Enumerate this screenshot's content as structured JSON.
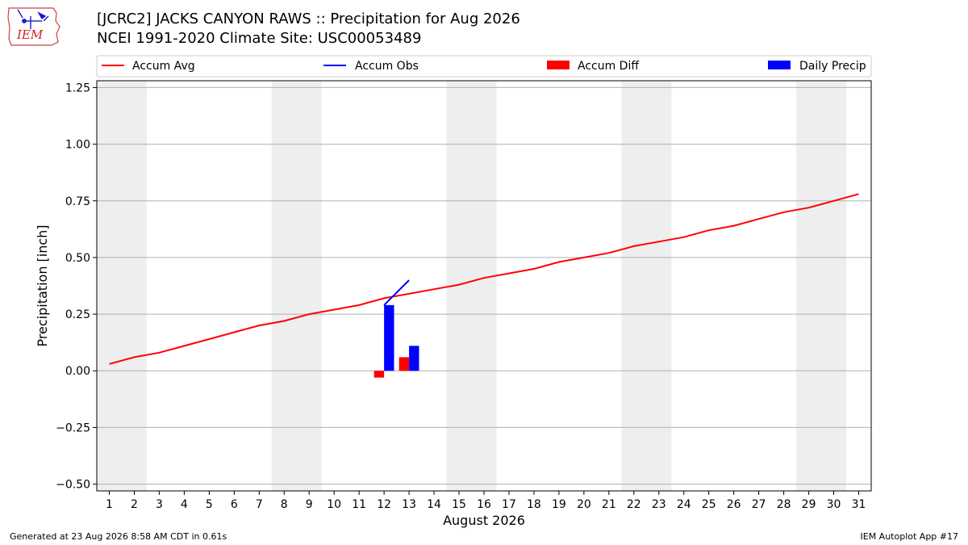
{
  "header": {
    "line1": "[JCRC2] JACKS CANYON RAWS :: Precipitation for Aug 2026",
    "line2": "NCEI 1991-2020 Climate Site: USC00053489"
  },
  "logo": {
    "text": "IEM",
    "color": "#cc2222"
  },
  "footer": {
    "left": "Generated at 23 Aug 2026 8:58 AM CDT in 0.61s",
    "right": "IEM Autoplot App #17"
  },
  "chart_data": {
    "type": "bar",
    "xlabel": "August 2026",
    "ylabel": "Precipitation [inch]",
    "xlim": [
      0.5,
      31.5
    ],
    "ylim": [
      -0.53,
      1.28
    ],
    "x_ticks": [
      1,
      2,
      3,
      4,
      5,
      6,
      7,
      8,
      9,
      10,
      11,
      12,
      13,
      14,
      15,
      16,
      17,
      18,
      19,
      20,
      21,
      22,
      23,
      24,
      25,
      26,
      27,
      28,
      29,
      30,
      31
    ],
    "y_ticks": [
      -0.5,
      -0.25,
      0.0,
      0.25,
      0.5,
      0.75,
      1.0,
      1.25
    ],
    "y_tick_labels": [
      "−0.50",
      "−0.25",
      "0.00",
      "0.25",
      "0.50",
      "0.75",
      "1.00",
      "1.25"
    ],
    "grid": "horizontal",
    "weekend_bands": [
      [
        1,
        2
      ],
      [
        8,
        9
      ],
      [
        15,
        16
      ],
      [
        22,
        23
      ],
      [
        29,
        30
      ]
    ],
    "legend": {
      "placement": "top",
      "entries": [
        "Accum Avg",
        "Accum Obs",
        "Accum Diff",
        "Daily Precip"
      ]
    },
    "colors": {
      "accum_avg": "#ff0000",
      "accum_obs": "#0000ff",
      "accum_diff": "#ff0000",
      "daily_precip": "#0000ff",
      "band": "#eeeeee",
      "grid": "#b0b0b0"
    },
    "series": [
      {
        "name": "Accum Avg",
        "kind": "line",
        "x": [
          1,
          2,
          3,
          4,
          5,
          6,
          7,
          8,
          9,
          10,
          11,
          12,
          13,
          14,
          15,
          16,
          17,
          18,
          19,
          20,
          21,
          22,
          23,
          24,
          25,
          26,
          27,
          28,
          29,
          30,
          31
        ],
        "values": [
          0.03,
          0.06,
          0.08,
          0.11,
          0.14,
          0.17,
          0.2,
          0.22,
          0.25,
          0.27,
          0.29,
          0.32,
          0.34,
          0.36,
          0.38,
          0.41,
          0.43,
          0.45,
          0.48,
          0.5,
          0.52,
          0.55,
          0.57,
          0.59,
          0.62,
          0.64,
          0.67,
          0.7,
          0.72,
          0.75,
          0.78
        ]
      },
      {
        "name": "Accum Obs",
        "kind": "line",
        "x": [
          12,
          13
        ],
        "values": [
          0.29,
          0.4
        ]
      },
      {
        "name": "Accum Diff",
        "kind": "bar",
        "x": [
          12,
          13
        ],
        "values": [
          -0.03,
          0.06
        ]
      },
      {
        "name": "Daily Precip",
        "kind": "bar",
        "x": [
          12,
          13
        ],
        "values": [
          0.29,
          0.11
        ]
      }
    ]
  }
}
